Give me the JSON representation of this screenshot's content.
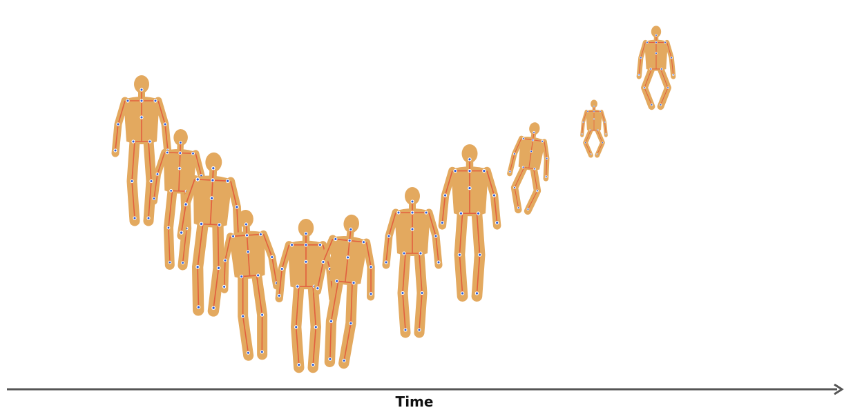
{
  "axis": {
    "label": "Time"
  },
  "figure": {
    "body_color": "#e3a95f",
    "bone_color": "#e2603f",
    "joint_color": "#2a5bd7",
    "axis_color": "#555555",
    "poses": [
      "stand-back",
      "walk-back",
      "walk-back",
      "walk-front",
      "stand-front",
      "walk-three-quarter",
      "stand-back",
      "stand-back",
      "crouch",
      "crouch",
      "jump"
    ]
  }
}
